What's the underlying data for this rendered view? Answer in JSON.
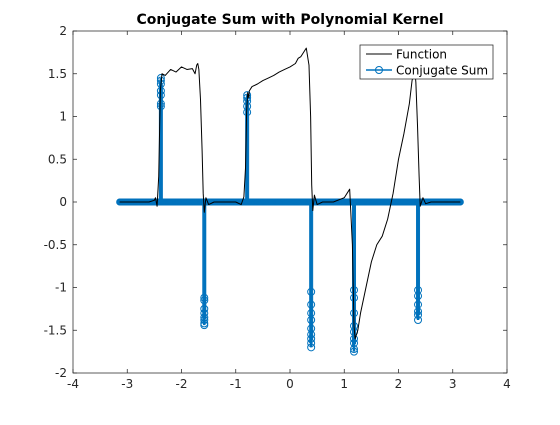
{
  "chart_data": {
    "type": "line",
    "title": "Conjugate Sum with Polynomial Kernel",
    "xlabel": "",
    "ylabel": "",
    "xlim": [
      -4,
      4
    ],
    "ylim": [
      -2,
      2
    ],
    "xticks": [
      -4,
      -3,
      -2,
      -1,
      0,
      1,
      2,
      3,
      4
    ],
    "yticks": [
      -2,
      -1.5,
      -1,
      -0.5,
      0,
      0.5,
      1,
      1.5,
      2
    ],
    "xtick_labels": [
      "-4",
      "-3",
      "-2",
      "-1",
      "0",
      "1",
      "2",
      "3",
      "4"
    ],
    "ytick_labels": [
      "-2",
      "-1.5",
      "-1",
      "-0.5",
      "0",
      "0.5",
      "1",
      "1.5",
      "2"
    ],
    "grid": false,
    "legend_position": "top-right",
    "series": [
      {
        "name": "Function",
        "style": "line",
        "color": "#000000",
        "x": [
          -3.14,
          -2.6,
          -2.5,
          -2.48,
          -2.45,
          -2.42,
          -2.39,
          -2.36,
          -2.3,
          -2.2,
          -2.1,
          -2.0,
          -1.9,
          -1.8,
          -1.75,
          -1.72,
          -1.7,
          -1.68,
          -1.65,
          -1.62,
          -1.6,
          -1.58,
          -1.55,
          -1.5,
          -1.4,
          -1.0,
          -0.9,
          -0.85,
          -0.82,
          -0.8,
          -0.78,
          -0.76,
          -0.75,
          -0.7,
          -0.6,
          -0.5,
          -0.4,
          -0.3,
          -0.2,
          -0.1,
          0.0,
          0.1,
          0.15,
          0.2,
          0.25,
          0.3,
          0.35,
          0.38,
          0.4,
          0.42,
          0.45,
          0.5,
          0.6,
          0.8,
          1.0,
          1.1,
          1.15,
          1.18,
          1.2,
          1.25,
          1.3,
          1.4,
          1.5,
          1.6,
          1.7,
          1.8,
          1.9,
          2.0,
          2.1,
          2.2,
          2.25,
          2.3,
          2.32,
          2.35,
          2.38,
          2.4,
          2.45,
          2.5,
          2.6,
          3.14
        ],
        "y": [
          0.0,
          0.0,
          0.02,
          0.05,
          -0.05,
          0.3,
          1.3,
          1.5,
          1.48,
          1.55,
          1.52,
          1.58,
          1.55,
          1.56,
          1.5,
          1.6,
          1.62,
          1.55,
          1.2,
          0.6,
          0.1,
          -0.12,
          0.05,
          -0.03,
          0.0,
          0.0,
          -0.03,
          0.06,
          0.4,
          1.05,
          1.28,
          1.22,
          1.3,
          1.35,
          1.38,
          1.42,
          1.45,
          1.48,
          1.52,
          1.55,
          1.58,
          1.62,
          1.68,
          1.7,
          1.75,
          1.8,
          1.6,
          1.0,
          0.2,
          -0.1,
          0.08,
          -0.03,
          0.0,
          0.0,
          0.05,
          0.15,
          -0.5,
          -1.45,
          -1.6,
          -1.5,
          -1.3,
          -1.0,
          -0.7,
          -0.5,
          -0.4,
          -0.2,
          0.1,
          0.5,
          0.8,
          1.15,
          1.42,
          1.55,
          1.4,
          0.9,
          0.3,
          -0.05,
          0.05,
          -0.02,
          0.0,
          0.0
        ]
      },
      {
        "name": "Conjugate Sum",
        "style": "stem",
        "color": "#0072bd",
        "x_range": [
          -3.14,
          3.14
        ],
        "baseline_spacing": 0.01,
        "stems": [
          {
            "x": -2.38,
            "y": [
              1.45,
              1.42,
              1.38,
              1.3,
              1.25,
              1.15,
              1.12
            ]
          },
          {
            "x": -1.58,
            "y": [
              -1.12,
              -1.15,
              -1.25,
              -1.3,
              -1.35,
              -1.38,
              -1.42,
              -1.44
            ]
          },
          {
            "x": -0.79,
            "y": [
              1.25,
              1.22,
              1.18,
              1.12,
              1.05
            ]
          },
          {
            "x": 0.39,
            "y": [
              -1.05,
              -1.2,
              -1.3,
              -1.38,
              -1.48,
              -1.55,
              -1.6,
              -1.65,
              -1.7
            ]
          },
          {
            "x": 1.18,
            "y": [
              -1.03,
              -1.12,
              -1.3,
              -1.45,
              -1.52,
              -1.6,
              -1.65,
              -1.72,
              -1.75
            ]
          },
          {
            "x": 2.36,
            "y": [
              -1.03,
              -1.1,
              -1.2,
              -1.28,
              -1.32,
              -1.38
            ]
          }
        ]
      }
    ]
  }
}
